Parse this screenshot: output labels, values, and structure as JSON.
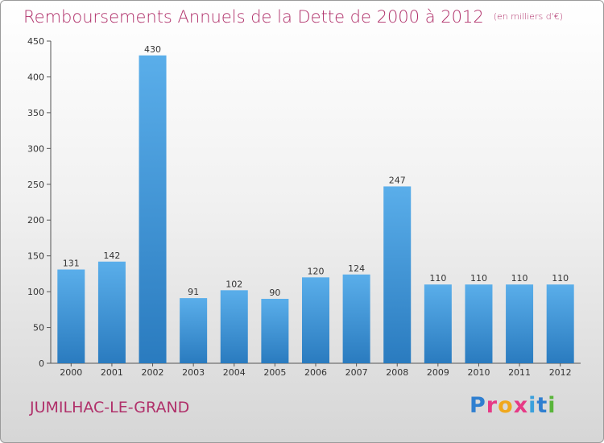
{
  "title": "Remboursements Annuels de la Dette de 2000 à 2012",
  "unit": "(en milliers d'€)",
  "commune": "JUMILHAC-LE-GRAND",
  "logo": {
    "letters": [
      "P",
      "r",
      "o",
      "x",
      "i",
      "t",
      "i"
    ],
    "colors": [
      "#2f7fd0",
      "#e63a86",
      "#f0a81e",
      "#e63a86",
      "#3aa0dc",
      "#2f7fd0",
      "#59b53a"
    ]
  },
  "colors": {
    "bar_light": "#5aaeea",
    "bar_dark": "#2a7bbf",
    "title": "#b0306a"
  },
  "chart_data": {
    "type": "bar",
    "categories": [
      "2000",
      "2001",
      "2002",
      "2003",
      "2004",
      "2005",
      "2006",
      "2007",
      "2008",
      "2009",
      "2010",
      "2011",
      "2012"
    ],
    "values": [
      131,
      142,
      430,
      91,
      102,
      90,
      120,
      124,
      247,
      110,
      110,
      110,
      110
    ],
    "ylim": [
      0,
      450
    ],
    "yticks": [
      0,
      50,
      100,
      150,
      200,
      250,
      300,
      350,
      400,
      450
    ],
    "grid": false,
    "legend": "none"
  }
}
